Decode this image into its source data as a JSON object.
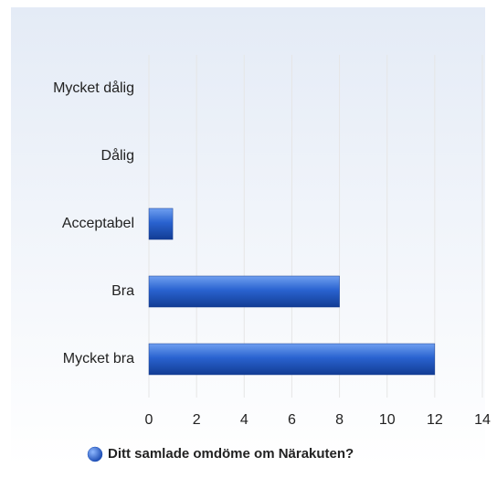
{
  "chart_data": {
    "type": "bar",
    "orientation": "horizontal",
    "categories": [
      "Mycket dålig",
      "Dålig",
      "Acceptabel",
      "Bra",
      "Mycket bra"
    ],
    "series": [
      {
        "name": "Ditt samlade omdöme om Närakuten?",
        "color": "#2255bb",
        "values": [
          0,
          0,
          1,
          8,
          12
        ]
      }
    ],
    "xlim": [
      0,
      14
    ],
    "xticks": [
      0,
      2,
      4,
      6,
      8,
      10,
      12,
      14
    ],
    "grid": true,
    "legend": "bottom"
  }
}
